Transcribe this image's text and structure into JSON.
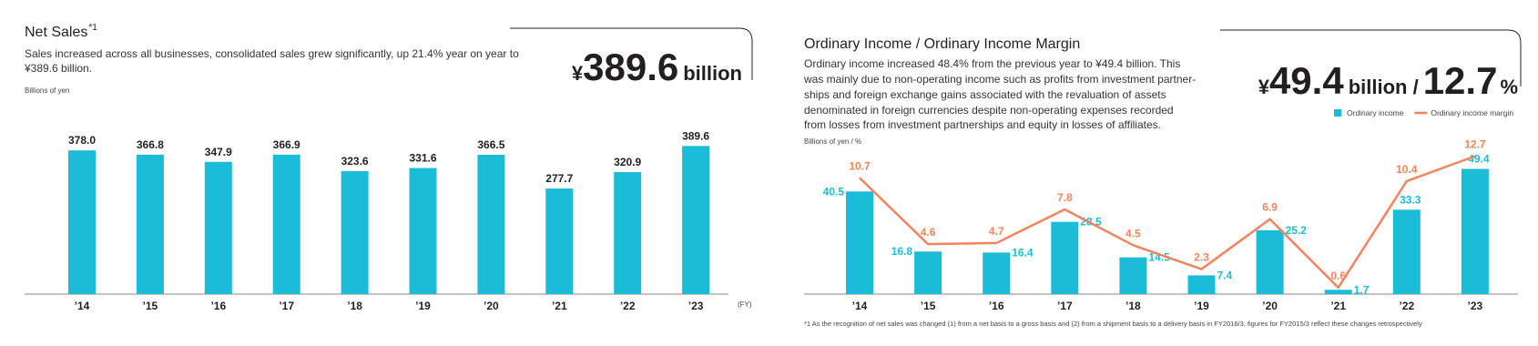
{
  "chart_data": [
    {
      "type": "bar",
      "title": "Net Sales",
      "title_note": "*1",
      "description": [
        "Sales increased across all businesses, consolidated sales grew significantly, up 21.4% year on year to",
        "¥389.6 billion."
      ],
      "headline": [
        "¥",
        "389.6",
        "billion"
      ],
      "ylabel": "Billions of yen",
      "xlabel": "(FY)",
      "categories": [
        "’14",
        "’15",
        "’16",
        "’17",
        "’18",
        "’19",
        "’20",
        "’21",
        "’22",
        "’23"
      ],
      "values": [
        378.0,
        366.8,
        347.9,
        366.9,
        323.6,
        331.6,
        366.5,
        277.7,
        320.9,
        389.6
      ],
      "value_labels": [
        "378.0",
        "366.8",
        "347.9",
        "366.9",
        "323.6",
        "331.6",
        "366.5",
        "277.7",
        "320.9",
        "389.6"
      ],
      "color": "#1bbcd8",
      "ylim": [
        0,
        400
      ]
    },
    {
      "type": "combo",
      "title": "Ordinary Income / Ordinary Income  Margin",
      "description": [
        "Ordinary income increased 48.4% from the previous year to ¥49.4 billion. This",
        "was mainly due to non-operating income such as profits from investment partner-",
        "ships and foreign exchange gains associated with the revaluation of assets",
        "denominated in foreign currencies despite non-operating expenses recorded",
        "from losses from investment partnerships and equity in losses of affiliates."
      ],
      "headline": [
        "¥",
        "49.4",
        "billion /",
        "12.7",
        "%"
      ],
      "ylabel": "Billions of yen / %",
      "categories": [
        "’14",
        "’15",
        "’16",
        "’17",
        "’18",
        "’19",
        "’20",
        "’21",
        "’22",
        "’23"
      ],
      "series": [
        {
          "name": "Ordinary income",
          "type": "bar",
          "color": "#1bbcd8",
          "values": [
            40.5,
            16.8,
            16.4,
            28.5,
            14.5,
            7.4,
            25.2,
            1.7,
            33.3,
            49.4
          ]
        },
        {
          "name": "Ordinary income margin",
          "type": "line",
          "axis": "y2",
          "color": "#f2845c",
          "values": [
            10.7,
            4.6,
            4.7,
            7.8,
            4.5,
            2.3,
            6.9,
            0.6,
            10.4,
            12.7
          ]
        }
      ],
      "ylim": [
        0,
        60
      ],
      "y2lim": [
        0,
        14
      ],
      "legend": "top-right"
    }
  ],
  "footnote": "*1 As the recognition of net sales was changed (1) from a net basis to a gross basis and (2) from a shipment basis to a delivery basis in FY2016/3, figures for FY2015/3 reflect these changes retrospectively"
}
